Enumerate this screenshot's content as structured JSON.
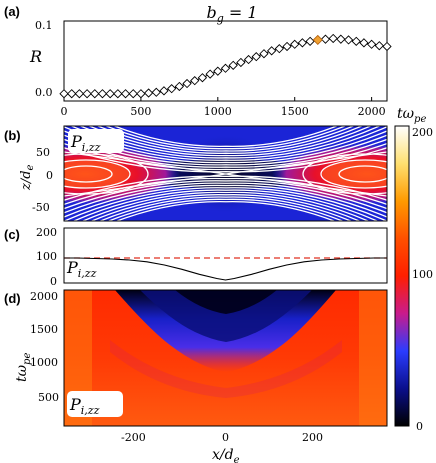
{
  "title": "b_g = 1",
  "panel_labels": [
    "(a)",
    "(b)",
    "(c)",
    "(d)"
  ],
  "colorbar": {
    "ticks": [
      "200",
      "100",
      "0"
    ],
    "range": [
      0,
      200
    ],
    "colors": [
      "#000000",
      "#0a0f8c",
      "#2b3cff",
      "#c91b8c",
      "#ff1f00",
      "#ff5000",
      "#ff9a00",
      "#ffe070",
      "#ffffff"
    ]
  },
  "chart_data": [
    {
      "panel": "a",
      "type": "line",
      "ylabel": "R",
      "xlabel": "tω_pe",
      "xlim": [
        0,
        2100
      ],
      "ylim": [
        -0.01,
        0.1
      ],
      "xticks": [
        "0",
        "500",
        "1000",
        "1500",
        "2000"
      ],
      "yticks": [
        "0.0",
        "0.1"
      ],
      "marker": "diamond",
      "highlight": {
        "x": 1650,
        "y": 0.074,
        "color": "#f0a030"
      },
      "x": [
        0,
        50,
        100,
        150,
        200,
        250,
        300,
        350,
        400,
        450,
        500,
        550,
        600,
        650,
        700,
        750,
        800,
        850,
        900,
        950,
        1000,
        1050,
        1100,
        1150,
        1200,
        1250,
        1300,
        1350,
        1400,
        1450,
        1500,
        1550,
        1600,
        1650,
        1700,
        1750,
        1800,
        1850,
        1900,
        1950,
        2000,
        2050,
        2100
      ],
      "y": [
        0.0,
        0.0,
        0.0,
        0.0,
        0.0,
        0.0,
        0.0,
        0.0,
        0.0,
        0.0,
        0.0,
        0.001,
        0.002,
        0.004,
        0.007,
        0.01,
        0.014,
        0.018,
        0.022,
        0.027,
        0.031,
        0.035,
        0.039,
        0.043,
        0.047,
        0.051,
        0.055,
        0.059,
        0.062,
        0.065,
        0.068,
        0.07,
        0.072,
        0.074,
        0.075,
        0.076,
        0.075,
        0.074,
        0.072,
        0.07,
        0.068,
        0.066,
        0.065
      ]
    },
    {
      "panel": "b",
      "type": "heatmap",
      "label": "P_i,zz",
      "ylabel": "z/d_e",
      "yticks": [
        "50",
        "0",
        "-50"
      ],
      "ylim": [
        -70,
        70
      ],
      "xlim": [
        -370,
        370
      ],
      "overlay": "magnetic flux contours (white)"
    },
    {
      "panel": "c",
      "type": "line",
      "label": "P_i,zz",
      "ylim": [
        0,
        220
      ],
      "yticks": [
        "0",
        "100",
        "200"
      ],
      "xlim": [
        -370,
        370
      ],
      "reference_line": {
        "y": 100,
        "color": "#e03020",
        "style": "dashed"
      },
      "x": [
        -370,
        -340,
        -300,
        -260,
        -220,
        -180,
        -140,
        -100,
        -60,
        -20,
        0,
        20,
        60,
        100,
        140,
        180,
        220,
        260,
        300,
        340,
        370
      ],
      "y": [
        100,
        100,
        98,
        96,
        92,
        85,
        72,
        55,
        35,
        18,
        12,
        18,
        35,
        55,
        72,
        85,
        92,
        96,
        98,
        100,
        100
      ]
    },
    {
      "panel": "d",
      "type": "heatmap",
      "label": "P_i,zz",
      "ylabel": "tω_pe",
      "xlabel": "x/d_e",
      "xlim": [
        -370,
        370
      ],
      "ylim": [
        0,
        2100
      ],
      "xticks": [
        "-200",
        "0",
        "200"
      ],
      "yticks": [
        "500",
        "1000",
        "1500",
        "2000"
      ]
    }
  ]
}
